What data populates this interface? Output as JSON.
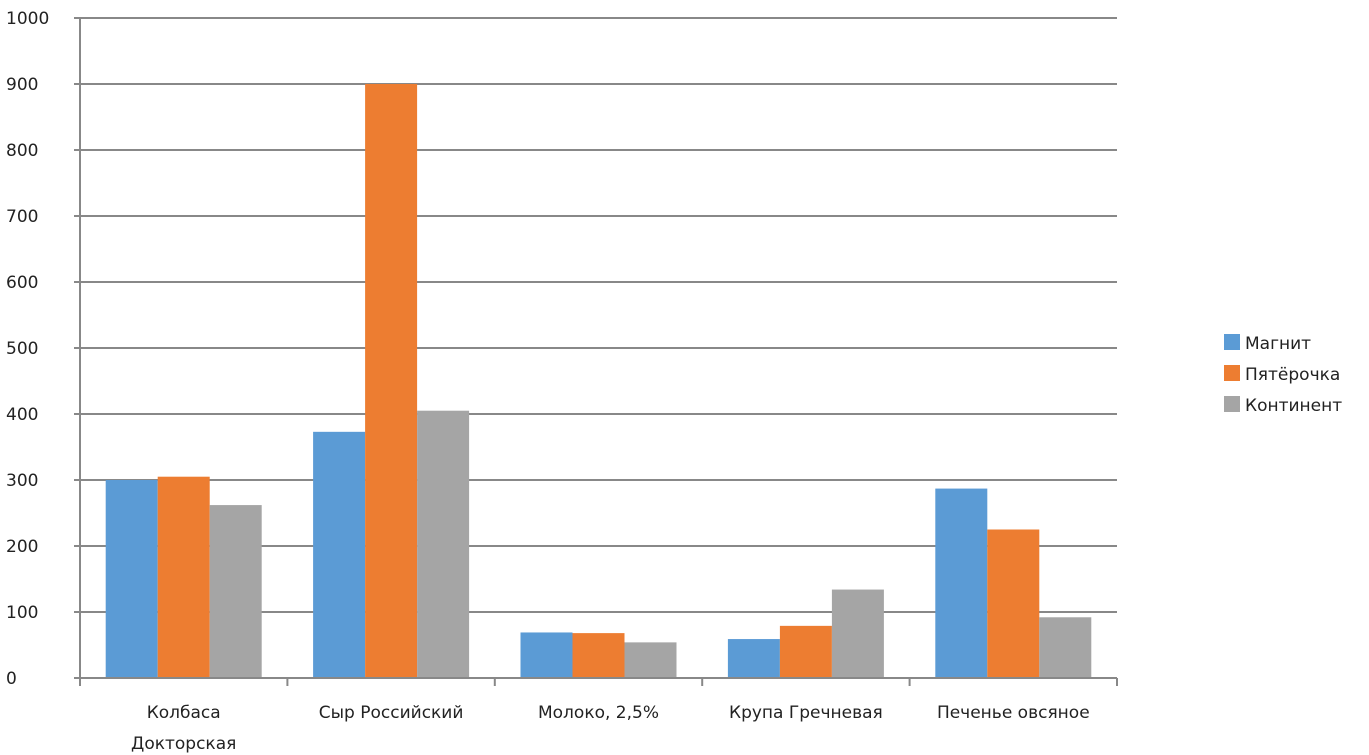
{
  "chart_data": {
    "type": "bar",
    "categories": [
      [
        "Колбаса",
        "Докторская"
      ],
      [
        "Сыр Российский"
      ],
      [
        "Молоко, 2,5%"
      ],
      [
        "Крупа Гречневая"
      ],
      [
        "Печенье овсяное"
      ]
    ],
    "series": [
      {
        "name": "Магнит",
        "color": "#5B9BD5",
        "values": [
          300,
          373,
          69,
          59,
          287
        ]
      },
      {
        "name": "Пятёрочка",
        "color": "#ED7D31",
        "values": [
          305,
          900,
          68,
          79,
          225
        ]
      },
      {
        "name": "Континент",
        "color": "#A5A5A5",
        "values": [
          262,
          405,
          54,
          134,
          92
        ]
      }
    ],
    "ylim": [
      0,
      1000
    ],
    "yticks": [
      0,
      100,
      200,
      300,
      400,
      500,
      600,
      700,
      800,
      900,
      1000
    ],
    "grid": true,
    "legend_position": "right",
    "title": "",
    "xlabel": "",
    "ylabel": ""
  }
}
